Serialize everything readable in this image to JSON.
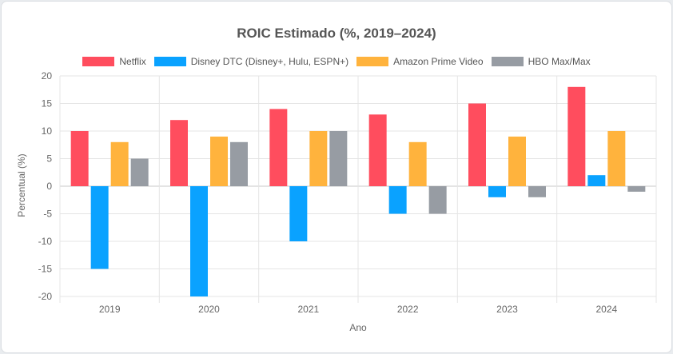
{
  "chart_data": {
    "type": "bar",
    "title": "ROIC Estimado (%, 2019–2024)",
    "xlabel": "Ano",
    "ylabel": "Percentual (%)",
    "categories": [
      "2019",
      "2020",
      "2021",
      "2022",
      "2023",
      "2024"
    ],
    "ylim": [
      -20,
      20
    ],
    "yticks": [
      -20,
      -15,
      -10,
      -5,
      0,
      5,
      10,
      15,
      20
    ],
    "grid": true,
    "legend_position": "top",
    "series": [
      {
        "name": "Netflix",
        "color": "#ff4d5e",
        "values": [
          10,
          12,
          14,
          13,
          15,
          18
        ]
      },
      {
        "name": "Disney DTC (Disney+, Hulu, ESPN+)",
        "color": "#0aa2ff",
        "values": [
          -15,
          -20,
          -10,
          -5,
          -2,
          2
        ]
      },
      {
        "name": "Amazon Prime Video",
        "color": "#ffb33d",
        "values": [
          8,
          9,
          10,
          8,
          9,
          10
        ]
      },
      {
        "name": "HBO Max/Max",
        "color": "#979ca3",
        "values": [
          5,
          8,
          10,
          -5,
          -2,
          -1
        ]
      }
    ]
  }
}
